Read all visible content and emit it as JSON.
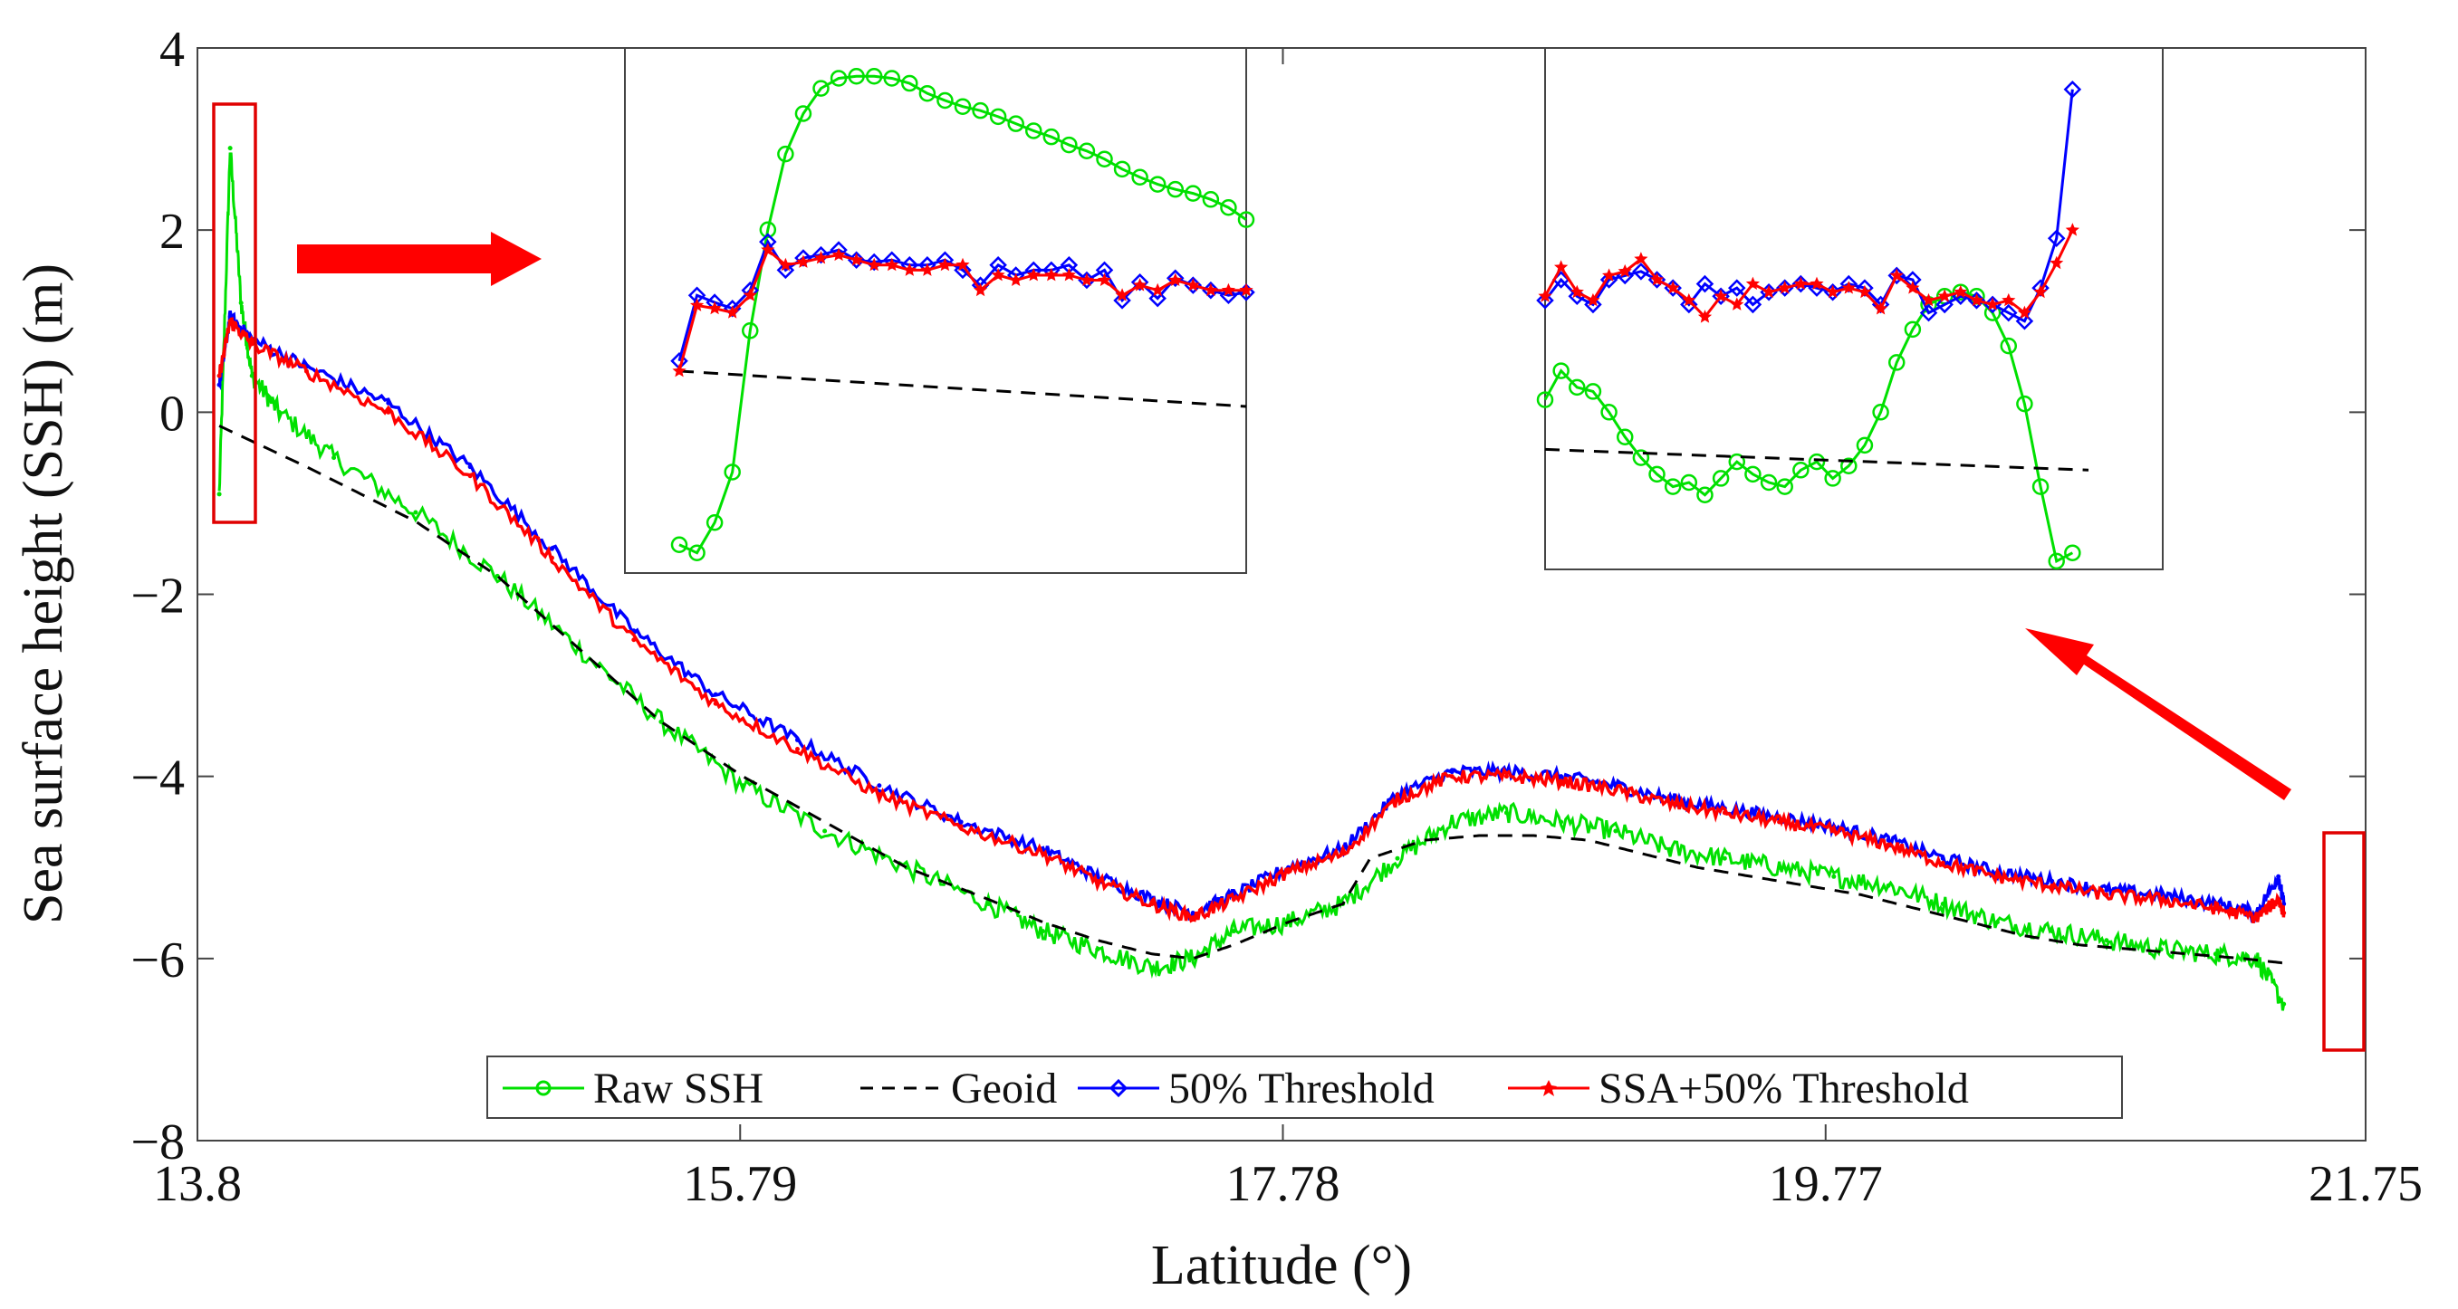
{
  "chart_data": {
    "type": "line",
    "title": "",
    "xlabel": "Latitude (°)",
    "ylabel": "Sea surface height (SSH) (m)",
    "xlim": [
      13.8,
      21.75
    ],
    "ylim": [
      -8,
      4
    ],
    "xticks": [
      13.8,
      15.79,
      17.78,
      19.77,
      21.75
    ],
    "xtick_labels": [
      "13.8",
      "15.79",
      "17.78",
      "19.77",
      "21.75"
    ],
    "yticks": [
      -8,
      -6,
      -4,
      -2,
      0,
      2,
      4
    ],
    "ytick_labels": [
      "−8",
      "−6",
      "−4",
      "−2",
      "0",
      "2",
      "4"
    ],
    "grid": false,
    "legend_position": "bottom-center",
    "series": [
      {
        "name": "Raw SSH",
        "color": "#00e000",
        "marker": "circle",
        "x": [
          13.88,
          13.92,
          13.96,
          14.0,
          14.1,
          14.3,
          14.6,
          14.9,
          15.2,
          15.5,
          15.8,
          16.1,
          16.4,
          16.7,
          16.9,
          17.1,
          17.3,
          17.45,
          17.6,
          17.8,
          18.0,
          18.2,
          18.4,
          18.6,
          18.8,
          19.0,
          19.2,
          19.4,
          19.6,
          19.8,
          20.0,
          20.2,
          20.4,
          20.6,
          20.8,
          21.0,
          21.2,
          21.35,
          21.45
        ],
        "y": [
          -0.9,
          2.9,
          1.2,
          0.4,
          0.0,
          -0.5,
          -1.1,
          -1.8,
          -2.6,
          -3.4,
          -4.1,
          -4.6,
          -5.0,
          -5.4,
          -5.7,
          -5.9,
          -6.1,
          -6.0,
          -5.7,
          -5.6,
          -5.4,
          -4.9,
          -4.5,
          -4.4,
          -4.5,
          -4.6,
          -4.8,
          -4.9,
          -5.0,
          -5.1,
          -5.2,
          -5.4,
          -5.6,
          -5.7,
          -5.8,
          -5.9,
          -5.95,
          -6.0,
          -6.5
        ]
      },
      {
        "name": "Geoid",
        "color": "#000000",
        "marker": "none",
        "x": [
          13.88,
          14.2,
          14.6,
          14.9,
          15.2,
          15.5,
          15.8,
          16.1,
          16.4,
          16.7,
          16.9,
          17.1,
          17.3,
          17.45,
          17.6,
          17.8,
          18.0,
          18.1,
          18.3,
          18.5,
          18.7,
          18.9,
          19.1,
          19.3,
          19.5,
          19.7,
          19.9,
          20.1,
          20.3,
          20.5,
          20.7,
          20.9,
          21.1,
          21.3,
          21.45
        ],
        "y": [
          -0.15,
          -0.6,
          -1.2,
          -1.8,
          -2.6,
          -3.4,
          -4.0,
          -4.5,
          -5.0,
          -5.35,
          -5.6,
          -5.8,
          -5.95,
          -6.0,
          -5.85,
          -5.6,
          -5.4,
          -4.9,
          -4.7,
          -4.65,
          -4.65,
          -4.7,
          -4.85,
          -5.0,
          -5.1,
          -5.2,
          -5.3,
          -5.45,
          -5.6,
          -5.75,
          -5.85,
          -5.9,
          -5.95,
          -6.0,
          -6.05
        ]
      },
      {
        "name": "50% Threshold",
        "color": "#0000ff",
        "marker": "diamond",
        "x": [
          13.88,
          13.92,
          14.0,
          14.2,
          14.5,
          14.8,
          15.1,
          15.4,
          15.7,
          16.0,
          16.3,
          16.6,
          16.9,
          17.1,
          17.3,
          17.45,
          17.6,
          17.8,
          18.0,
          18.2,
          18.4,
          18.6,
          18.8,
          19.0,
          19.2,
          19.4,
          19.6,
          19.8,
          20.0,
          20.2,
          20.4,
          20.6,
          20.8,
          21.0,
          21.2,
          21.35,
          21.43,
          21.45
        ],
        "y": [
          0.3,
          1.05,
          0.8,
          0.5,
          0.1,
          -0.6,
          -1.5,
          -2.4,
          -3.1,
          -3.6,
          -4.1,
          -4.5,
          -4.8,
          -5.1,
          -5.35,
          -5.5,
          -5.3,
          -5.0,
          -4.8,
          -4.2,
          -3.95,
          -3.95,
          -4.0,
          -4.1,
          -4.25,
          -4.35,
          -4.45,
          -4.55,
          -4.7,
          -4.9,
          -5.05,
          -5.15,
          -5.25,
          -5.3,
          -5.4,
          -5.5,
          -5.1,
          -5.4
        ]
      },
      {
        "name": "SSA+50% Threshold",
        "color": "#ff0000",
        "marker": "star",
        "x": [
          13.88,
          13.92,
          14.0,
          14.2,
          14.5,
          14.8,
          15.1,
          15.4,
          15.7,
          16.0,
          16.3,
          16.6,
          16.9,
          17.1,
          17.3,
          17.45,
          17.6,
          17.8,
          18.0,
          18.2,
          18.4,
          18.6,
          18.8,
          19.0,
          19.2,
          19.4,
          19.6,
          19.8,
          20.0,
          20.2,
          20.4,
          20.6,
          20.8,
          21.0,
          21.2,
          21.35,
          21.43,
          21.45
        ],
        "y": [
          0.4,
          1.0,
          0.75,
          0.45,
          0.0,
          -0.7,
          -1.6,
          -2.5,
          -3.2,
          -3.7,
          -4.2,
          -4.55,
          -4.85,
          -5.15,
          -5.4,
          -5.55,
          -5.35,
          -5.05,
          -4.85,
          -4.25,
          -4.0,
          -4.0,
          -4.05,
          -4.15,
          -4.3,
          -4.4,
          -4.5,
          -4.6,
          -4.75,
          -4.95,
          -5.1,
          -5.2,
          -5.3,
          -5.35,
          -5.45,
          -5.55,
          -5.35,
          -5.5
        ]
      }
    ],
    "insets": [
      {
        "name": "left-zoom",
        "source_region": "start of track (~13.88°)",
        "xlim": [
          0,
          32
        ],
        "ylim": [
          -3,
          2.2
        ],
        "series": [
          {
            "name": "Raw SSH",
            "color": "#00e000",
            "marker": "circle",
            "x": [
              0,
              1,
              2,
              3,
              4,
              5,
              6,
              7,
              8,
              9,
              10,
              11,
              12,
              13,
              14,
              15,
              16,
              17,
              18,
              19,
              20,
              21,
              22,
              23,
              24,
              25,
              26,
              27,
              28,
              29,
              30,
              31,
              32
            ],
            "y": [
              -2.72,
              -2.8,
              -2.5,
              -2.0,
              -0.6,
              0.4,
              1.15,
              1.55,
              1.8,
              1.9,
              1.92,
              1.92,
              1.9,
              1.85,
              1.75,
              1.68,
              1.62,
              1.58,
              1.52,
              1.45,
              1.38,
              1.32,
              1.24,
              1.18,
              1.1,
              1.0,
              0.92,
              0.85,
              0.8,
              0.76,
              0.7,
              0.62,
              0.5
            ]
          },
          {
            "name": "Geoid",
            "color": "#000000",
            "marker": "none",
            "x": [
              0,
              32
            ],
            "y": [
              -1.0,
              -1.35
            ]
          },
          {
            "name": "50% Threshold",
            "color": "#0000ff",
            "marker": "diamond",
            "x": [
              0,
              1,
              2,
              3,
              4,
              5,
              6,
              7,
              8,
              9,
              10,
              11,
              12,
              13,
              14,
              15,
              16,
              17,
              18,
              19,
              20,
              21,
              22,
              23,
              24,
              25,
              26,
              27,
              28,
              29,
              30,
              31,
              32
            ],
            "y": [
              -0.9,
              -0.25,
              -0.32,
              -0.38,
              -0.2,
              0.28,
              0.0,
              0.12,
              0.15,
              0.2,
              0.1,
              0.08,
              0.1,
              0.05,
              0.05,
              0.1,
              0.0,
              -0.15,
              0.05,
              -0.05,
              0.0,
              0.0,
              0.05,
              -0.1,
              0.0,
              -0.3,
              -0.12,
              -0.28,
              -0.08,
              -0.15,
              -0.2,
              -0.25,
              -0.22
            ]
          },
          {
            "name": "SSA+50% Threshold",
            "color": "#ff0000",
            "marker": "star",
            "x": [
              0,
              1,
              2,
              3,
              4,
              5,
              6,
              7,
              8,
              9,
              10,
              11,
              12,
              13,
              14,
              15,
              16,
              17,
              18,
              19,
              20,
              21,
              22,
              23,
              24,
              25,
              26,
              27,
              28,
              29,
              30,
              31,
              32
            ],
            "y": [
              -1.0,
              -0.35,
              -0.38,
              -0.42,
              -0.25,
              0.2,
              0.05,
              0.08,
              0.12,
              0.15,
              0.1,
              0.05,
              0.05,
              0.0,
              0.0,
              0.05,
              0.05,
              -0.2,
              -0.05,
              -0.1,
              -0.05,
              -0.05,
              -0.05,
              -0.1,
              -0.1,
              -0.25,
              -0.15,
              -0.2,
              -0.1,
              -0.15,
              -0.2,
              -0.2,
              -0.2
            ]
          }
        ]
      },
      {
        "name": "right-zoom",
        "source_region": "end of track (~21.45°)",
        "xlim": [
          0,
          34
        ],
        "ylim": [
          -2.5,
          3.8
        ],
        "series": [
          {
            "name": "Raw SSH",
            "color": "#00e000",
            "marker": "circle",
            "x": [
              0,
              1,
              2,
              3,
              4,
              5,
              6,
              7,
              8,
              9,
              10,
              11,
              12,
              13,
              14,
              15,
              16,
              17,
              18,
              19,
              20,
              21,
              22,
              23,
              24,
              25,
              26,
              27,
              28,
              29,
              30,
              31,
              32,
              33
            ],
            "y": [
              -0.45,
              -0.1,
              -0.3,
              -0.35,
              -0.6,
              -0.9,
              -1.15,
              -1.35,
              -1.5,
              -1.45,
              -1.6,
              -1.4,
              -1.2,
              -1.35,
              -1.45,
              -1.5,
              -1.3,
              -1.2,
              -1.4,
              -1.25,
              -1.0,
              -0.6,
              0.0,
              0.4,
              0.7,
              0.8,
              0.85,
              0.8,
              0.6,
              0.2,
              -0.5,
              -1.5,
              -2.4,
              -2.3
            ]
          },
          {
            "name": "Geoid",
            "color": "#000000",
            "marker": "none",
            "x": [
              0,
              34
            ],
            "y": [
              -1.05,
              -1.3
            ]
          },
          {
            "name": "50% Threshold",
            "color": "#0000ff",
            "marker": "diamond",
            "x": [
              0,
              1,
              2,
              3,
              4,
              5,
              6,
              7,
              8,
              9,
              10,
              11,
              12,
              13,
              14,
              15,
              16,
              17,
              18,
              19,
              20,
              21,
              22,
              23,
              24,
              25,
              26,
              27,
              28,
              29,
              30,
              31,
              32,
              33
            ],
            "y": [
              0.75,
              1.0,
              0.8,
              0.7,
              1.0,
              1.05,
              1.1,
              1.0,
              0.9,
              0.7,
              0.95,
              0.8,
              0.9,
              0.7,
              0.85,
              0.9,
              0.95,
              0.9,
              0.85,
              0.95,
              0.9,
              0.7,
              1.05,
              1.0,
              0.6,
              0.7,
              0.8,
              0.75,
              0.7,
              0.6,
              0.5,
              0.9,
              1.5,
              3.3
            ]
          },
          {
            "name": "SSA+50% Threshold",
            "color": "#ff0000",
            "marker": "star",
            "x": [
              0,
              1,
              2,
              3,
              4,
              5,
              6,
              7,
              8,
              9,
              10,
              11,
              12,
              13,
              14,
              15,
              16,
              17,
              18,
              19,
              20,
              21,
              22,
              23,
              24,
              25,
              26,
              27,
              28,
              29,
              30,
              31,
              32,
              33
            ],
            "y": [
              0.8,
              1.15,
              0.85,
              0.75,
              1.05,
              1.1,
              1.25,
              1.0,
              0.9,
              0.75,
              0.55,
              0.8,
              0.7,
              0.95,
              0.85,
              0.9,
              0.95,
              0.95,
              0.85,
              0.9,
              0.85,
              0.65,
              1.05,
              0.9,
              0.75,
              0.8,
              0.85,
              0.75,
              0.7,
              0.75,
              0.6,
              0.85,
              1.2,
              1.6
            ]
          }
        ]
      }
    ]
  }
}
